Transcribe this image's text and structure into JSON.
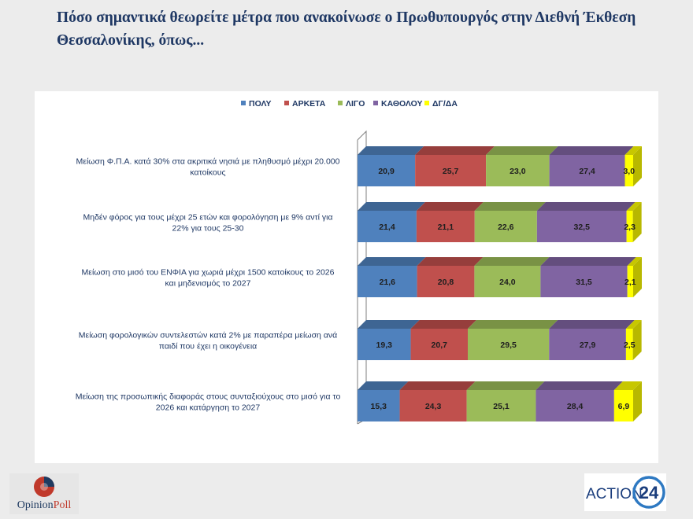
{
  "title": "Πόσο σημαντικά θεωρείτε μέτρα που ανακοίνωσε ο Πρωθυπουργός στην Διεθνή Έκθεση Θεσσαλονίκης, όπως...",
  "logos": {
    "opinion_poll_a": "Opinion",
    "opinion_poll_b": "Poll",
    "action24_text": "ACTION",
    "action24_num": "24"
  },
  "chart_data": {
    "type": "bar",
    "orientation": "horizontal",
    "stacked": true,
    "three_d": true,
    "legend_position": "top",
    "xlim": [
      0,
      100
    ],
    "categories": [
      "Μείωση Φ.Π.Α. κατά 30% στα ακριτικά νησιά με πληθυσμό μέχρι 20.000 κατοίκους",
      "Μηδέν φόρος για τους μέχρι 25 ετών και φορολόγηση με 9% αντί για 22% για τους 25-30",
      "Μείωση στο μισό του ΕΝΦΙΑ για χωριά μέχρι 1500 κατοίκους το 2026 και μηδενισμός το 2027",
      "Μείωση φορολογικών συντελεστών κατά 2% με παραπέρα μείωση ανά παιδί που έχει η οικογένεια",
      "Μείωση της προσωπικής διαφοράς στους συνταξιούχους στο μισό για το 2026 και κατάργηση το 2027"
    ],
    "series": [
      {
        "name": "ΠΟΛΥ",
        "color": "#4f81bd",
        "values": [
          "20,9",
          "21,4",
          "21,6",
          "19,3",
          "15,3"
        ]
      },
      {
        "name": "ΑΡΚΕΤΑ",
        "color": "#c0504d",
        "values": [
          "25,7",
          "21,1",
          "20,8",
          "20,7",
          "24,3"
        ]
      },
      {
        "name": "ΛΙΓΟ",
        "color": "#9bbb59",
        "values": [
          "23,0",
          "22,6",
          "24,0",
          "29,5",
          "25,1"
        ]
      },
      {
        "name": "ΚΑΘΟΛΟΥ",
        "color": "#8064a2",
        "values": [
          "27,4",
          "32,5",
          "31,5",
          "27,9",
          "28,4"
        ]
      },
      {
        "name": "ΔΓ/ΔΑ",
        "color": "#ffff00",
        "values": [
          "3,0",
          "2,3",
          "2,1",
          "2,5",
          "6,9"
        ]
      }
    ]
  }
}
